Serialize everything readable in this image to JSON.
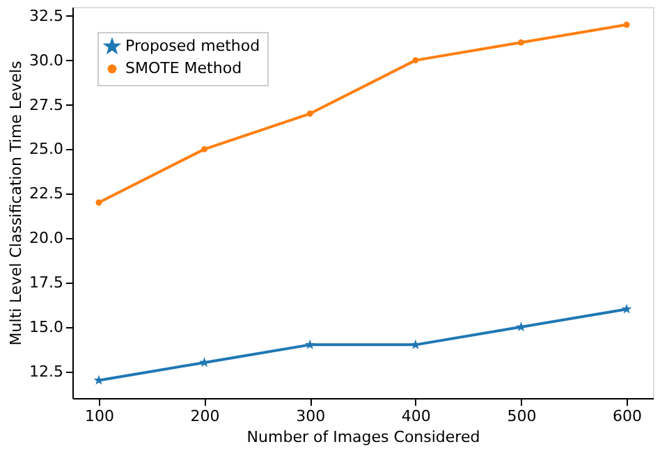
{
  "chart_data": {
    "type": "line",
    "xlabel": "Number of Images Considered",
    "ylabel": "Multi Level Classification Time Levels",
    "x": [
      100,
      200,
      300,
      400,
      500,
      600
    ],
    "series": [
      {
        "name": "Proposed method",
        "color": "#1f77b4",
        "marker": "star",
        "values": [
          12,
          13,
          14,
          14,
          15,
          16
        ]
      },
      {
        "name": "SMOTE Method",
        "color": "#ff7f0e",
        "marker": "circle",
        "values": [
          22,
          25,
          27,
          30,
          31,
          32
        ]
      }
    ],
    "xlim": [
      75,
      625
    ],
    "xticks": [
      100,
      200,
      300,
      400,
      500,
      600
    ],
    "ylim": [
      11,
      33
    ],
    "yticks": [
      {
        "value": 12.5,
        "label": "12.5"
      },
      {
        "value": 15,
        "label": "15.0"
      },
      {
        "value": 17.5,
        "label": "17.5"
      },
      {
        "value": 20,
        "label": "20.0"
      },
      {
        "value": 22.5,
        "label": "22.5"
      },
      {
        "value": 25,
        "label": "25.0"
      },
      {
        "value": 27.5,
        "label": "27.5"
      },
      {
        "value": 30,
        "label": "30.0"
      },
      {
        "value": 32.5,
        "label": "32.5"
      }
    ],
    "grid": false,
    "legend": "top left",
    "line_style": "solid"
  }
}
